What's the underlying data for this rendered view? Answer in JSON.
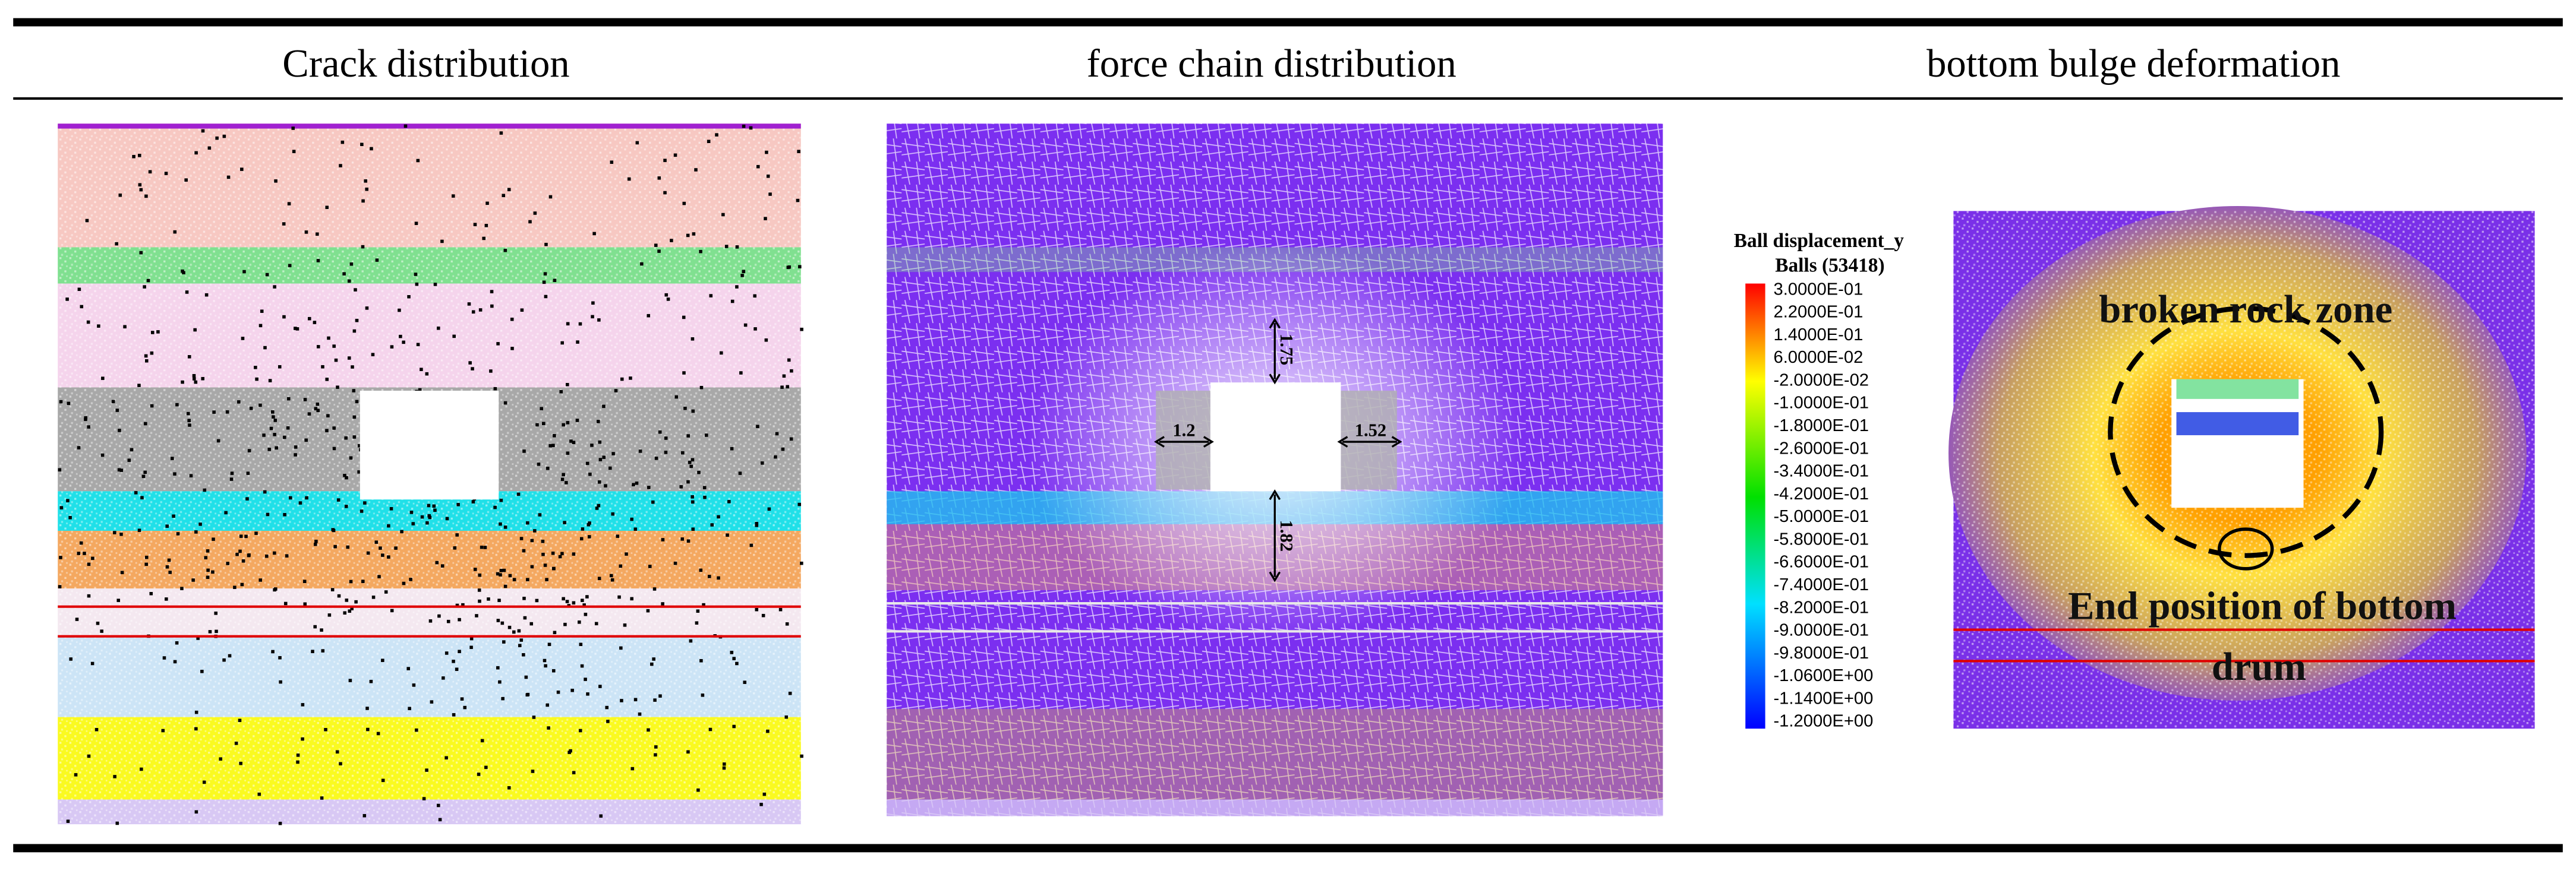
{
  "header": {
    "columns": [
      "Crack distribution",
      "force chain distribution",
      "bottom bulge deformation"
    ]
  },
  "panels": {
    "force_chain": {
      "annotations": [
        "1.75",
        "1.2",
        "1.52",
        "1.82"
      ]
    },
    "bulge": {
      "legend_title": "Ball displacement_y",
      "legend_subtitle": "Balls (53418)",
      "legend_labels": [
        "3.0000E-01",
        "2.2000E-01",
        "1.4000E-01",
        "6.0000E-02",
        "-2.0000E-02",
        "-1.0000E-01",
        "-1.8000E-01",
        "-2.6000E-01",
        "-3.4000E-01",
        "-4.2000E-01",
        "-5.0000E-01",
        "-5.8000E-01",
        "-6.6000E-01",
        "-7.4000E-01",
        "-8.2000E-01",
        "-9.0000E-01",
        "-9.8000E-01",
        "-1.0600E+00",
        "-1.1400E+00",
        "-1.2000E+00"
      ],
      "zone_label": "broken rock zone",
      "end_label_1": "End position of bottom",
      "end_label_2": "drum"
    }
  }
}
